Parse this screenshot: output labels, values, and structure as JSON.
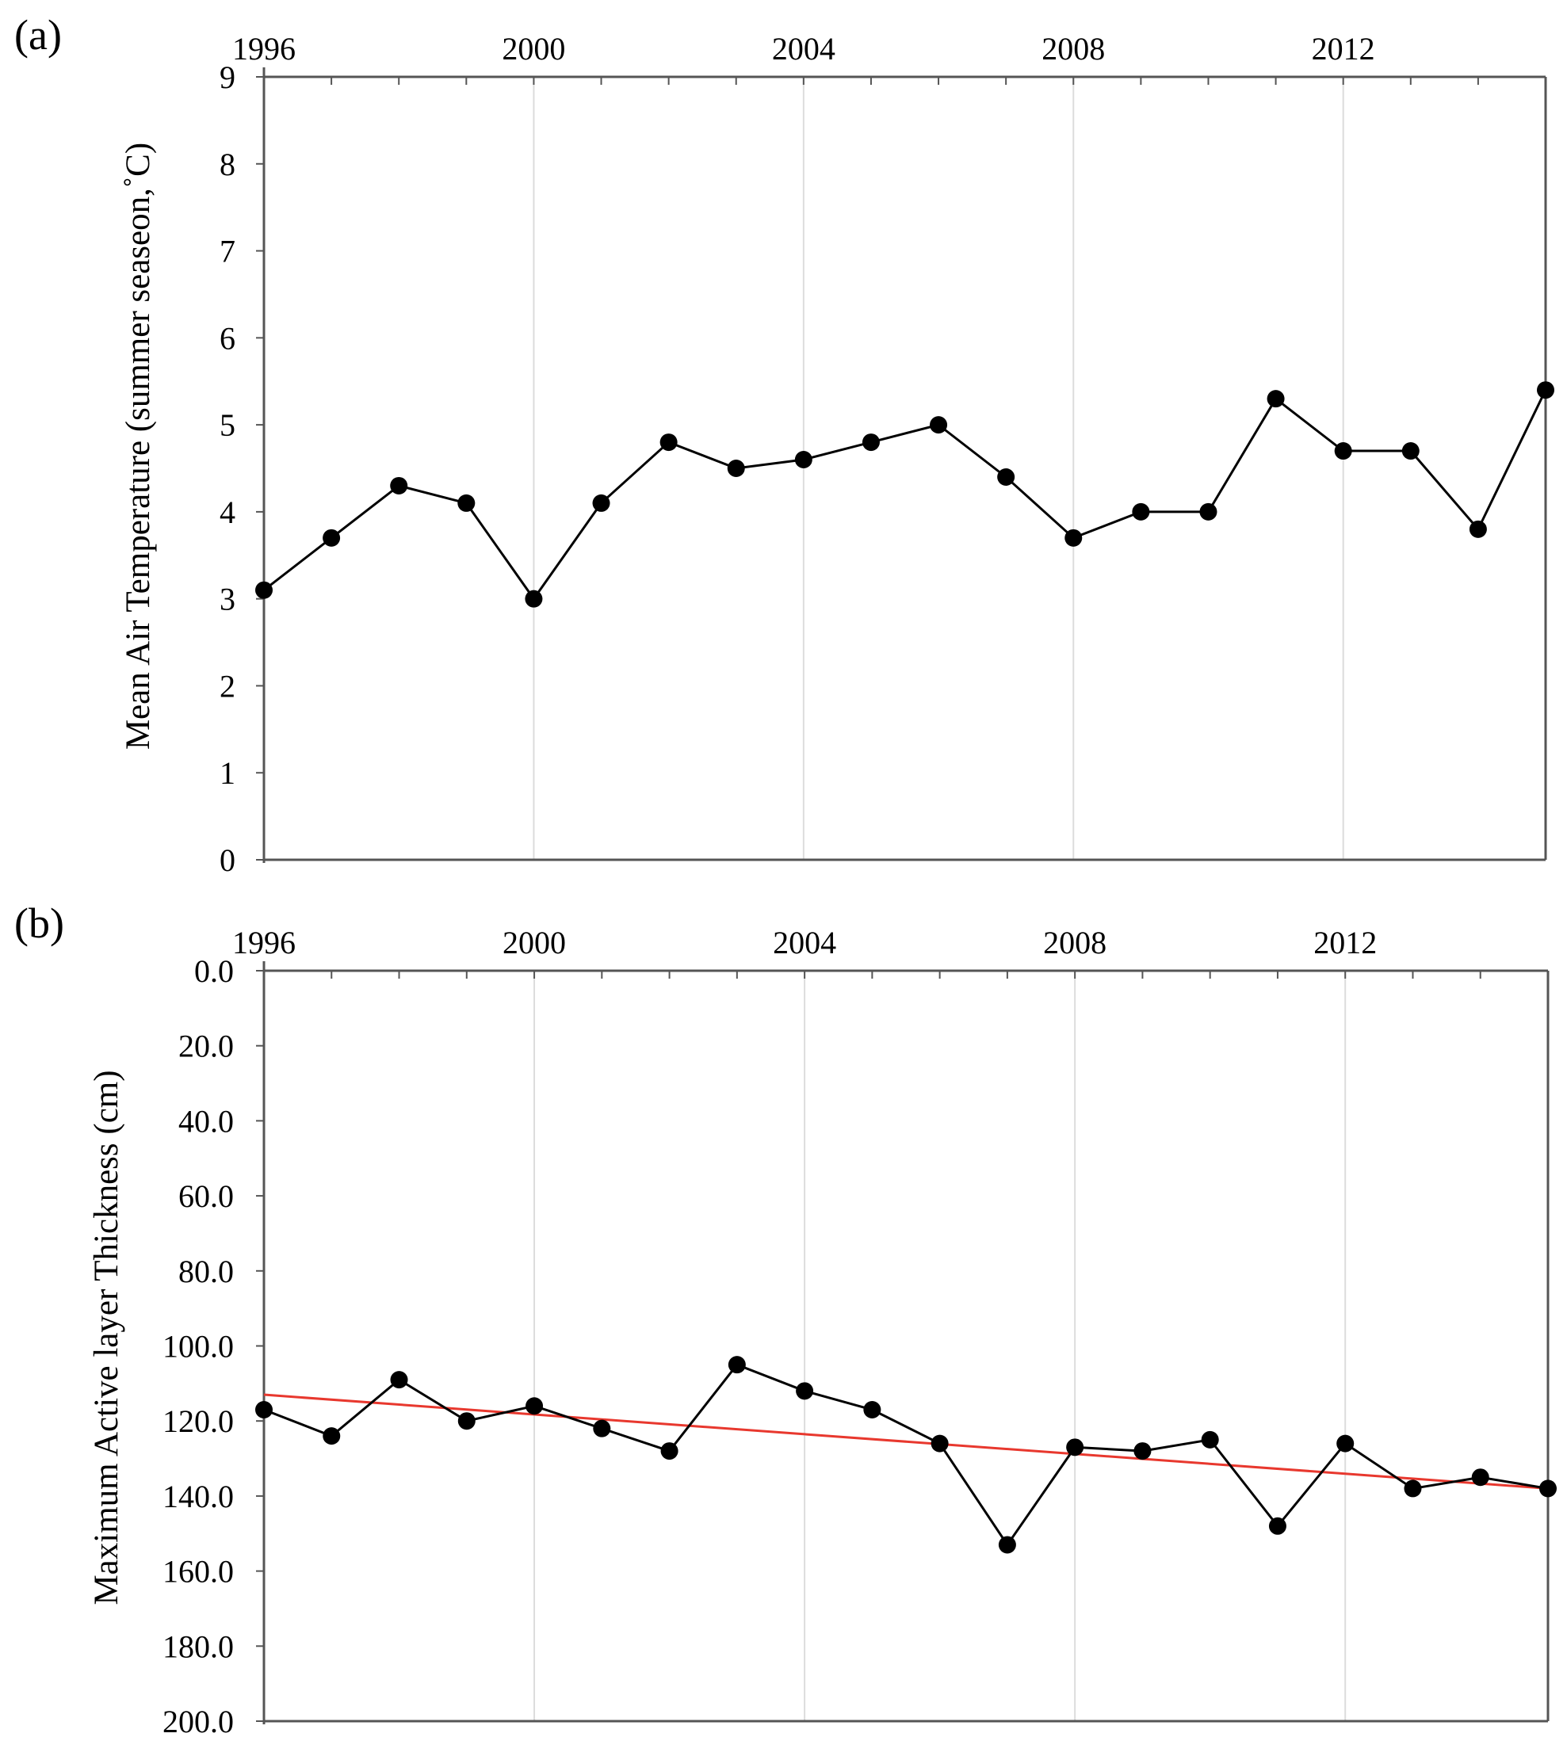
{
  "chart_data": [
    {
      "type": "line",
      "panel_label": "(a)",
      "ylabel": "Mean Air Temperature (summer seaseon,˚C)",
      "xlabel": "",
      "x_tick_labels": [
        "1996",
        "2000",
        "2004",
        "2008",
        "2012"
      ],
      "x_tick_values": [
        1996,
        2000,
        2004,
        2008,
        2012
      ],
      "xlim": [
        1996,
        2015
      ],
      "ylim": [
        0,
        9
      ],
      "y_tick_values": [
        0,
        1,
        2,
        3,
        4,
        5,
        6,
        7,
        8,
        9
      ],
      "y_tick_labels": [
        "0",
        "1",
        "2",
        "3",
        "4",
        "5",
        "6",
        "7",
        "8",
        "9"
      ],
      "y_inverted": false,
      "grid": "vertical gridlines at labeled years",
      "x_axis_position": "top",
      "series": [
        {
          "name": "Mean Air Temperature",
          "color": "#000000",
          "x": [
            1996,
            1997,
            1998,
            1999,
            2000,
            2001,
            2002,
            2003,
            2004,
            2005,
            2006,
            2007,
            2008,
            2009,
            2010,
            2011,
            2012,
            2013,
            2014,
            2015
          ],
          "values": [
            3.1,
            3.7,
            4.3,
            4.1,
            3.0,
            4.1,
            4.8,
            4.5,
            4.6,
            4.8,
            5.0,
            4.4,
            3.7,
            4.0,
            4.0,
            5.3,
            4.7,
            4.7,
            3.8,
            5.4
          ]
        }
      ]
    },
    {
      "type": "line",
      "panel_label": "(b)",
      "ylabel": "Maximum Active layer Thickness (cm)",
      "xlabel": "",
      "x_tick_labels": [
        "1996",
        "2000",
        "2004",
        "2008",
        "2012"
      ],
      "x_tick_values": [
        1996,
        2000,
        2004,
        2008,
        2012
      ],
      "xlim": [
        1996,
        2015
      ],
      "ylim": [
        0,
        200
      ],
      "y_tick_values": [
        0,
        20,
        40,
        60,
        80,
        100,
        120,
        140,
        160,
        180,
        200
      ],
      "y_tick_labels": [
        "0.0",
        "20.0",
        "40.0",
        "60.0",
        "80.0",
        "100.0",
        "120.0",
        "140.0",
        "160.0",
        "180.0",
        "200.0"
      ],
      "y_inverted": true,
      "grid": "vertical gridlines at labeled years",
      "x_axis_position": "top",
      "series": [
        {
          "name": "Maximum Active Layer Thickness",
          "color": "#000000",
          "x": [
            1996,
            1997,
            1998,
            1999,
            2000,
            2001,
            2002,
            2003,
            2004,
            2005,
            2006,
            2007,
            2008,
            2009,
            2010,
            2011,
            2012,
            2013,
            2014,
            2015
          ],
          "values": [
            117,
            124,
            109,
            120,
            116,
            122,
            128,
            105,
            112,
            117,
            126,
            153,
            127,
            128,
            125,
            148,
            126,
            138,
            135,
            138
          ]
        }
      ],
      "trendline": {
        "name": "Linear trend",
        "color": "#e8382e",
        "x": [
          1996,
          2015
        ],
        "values": [
          113,
          138
        ]
      }
    }
  ]
}
